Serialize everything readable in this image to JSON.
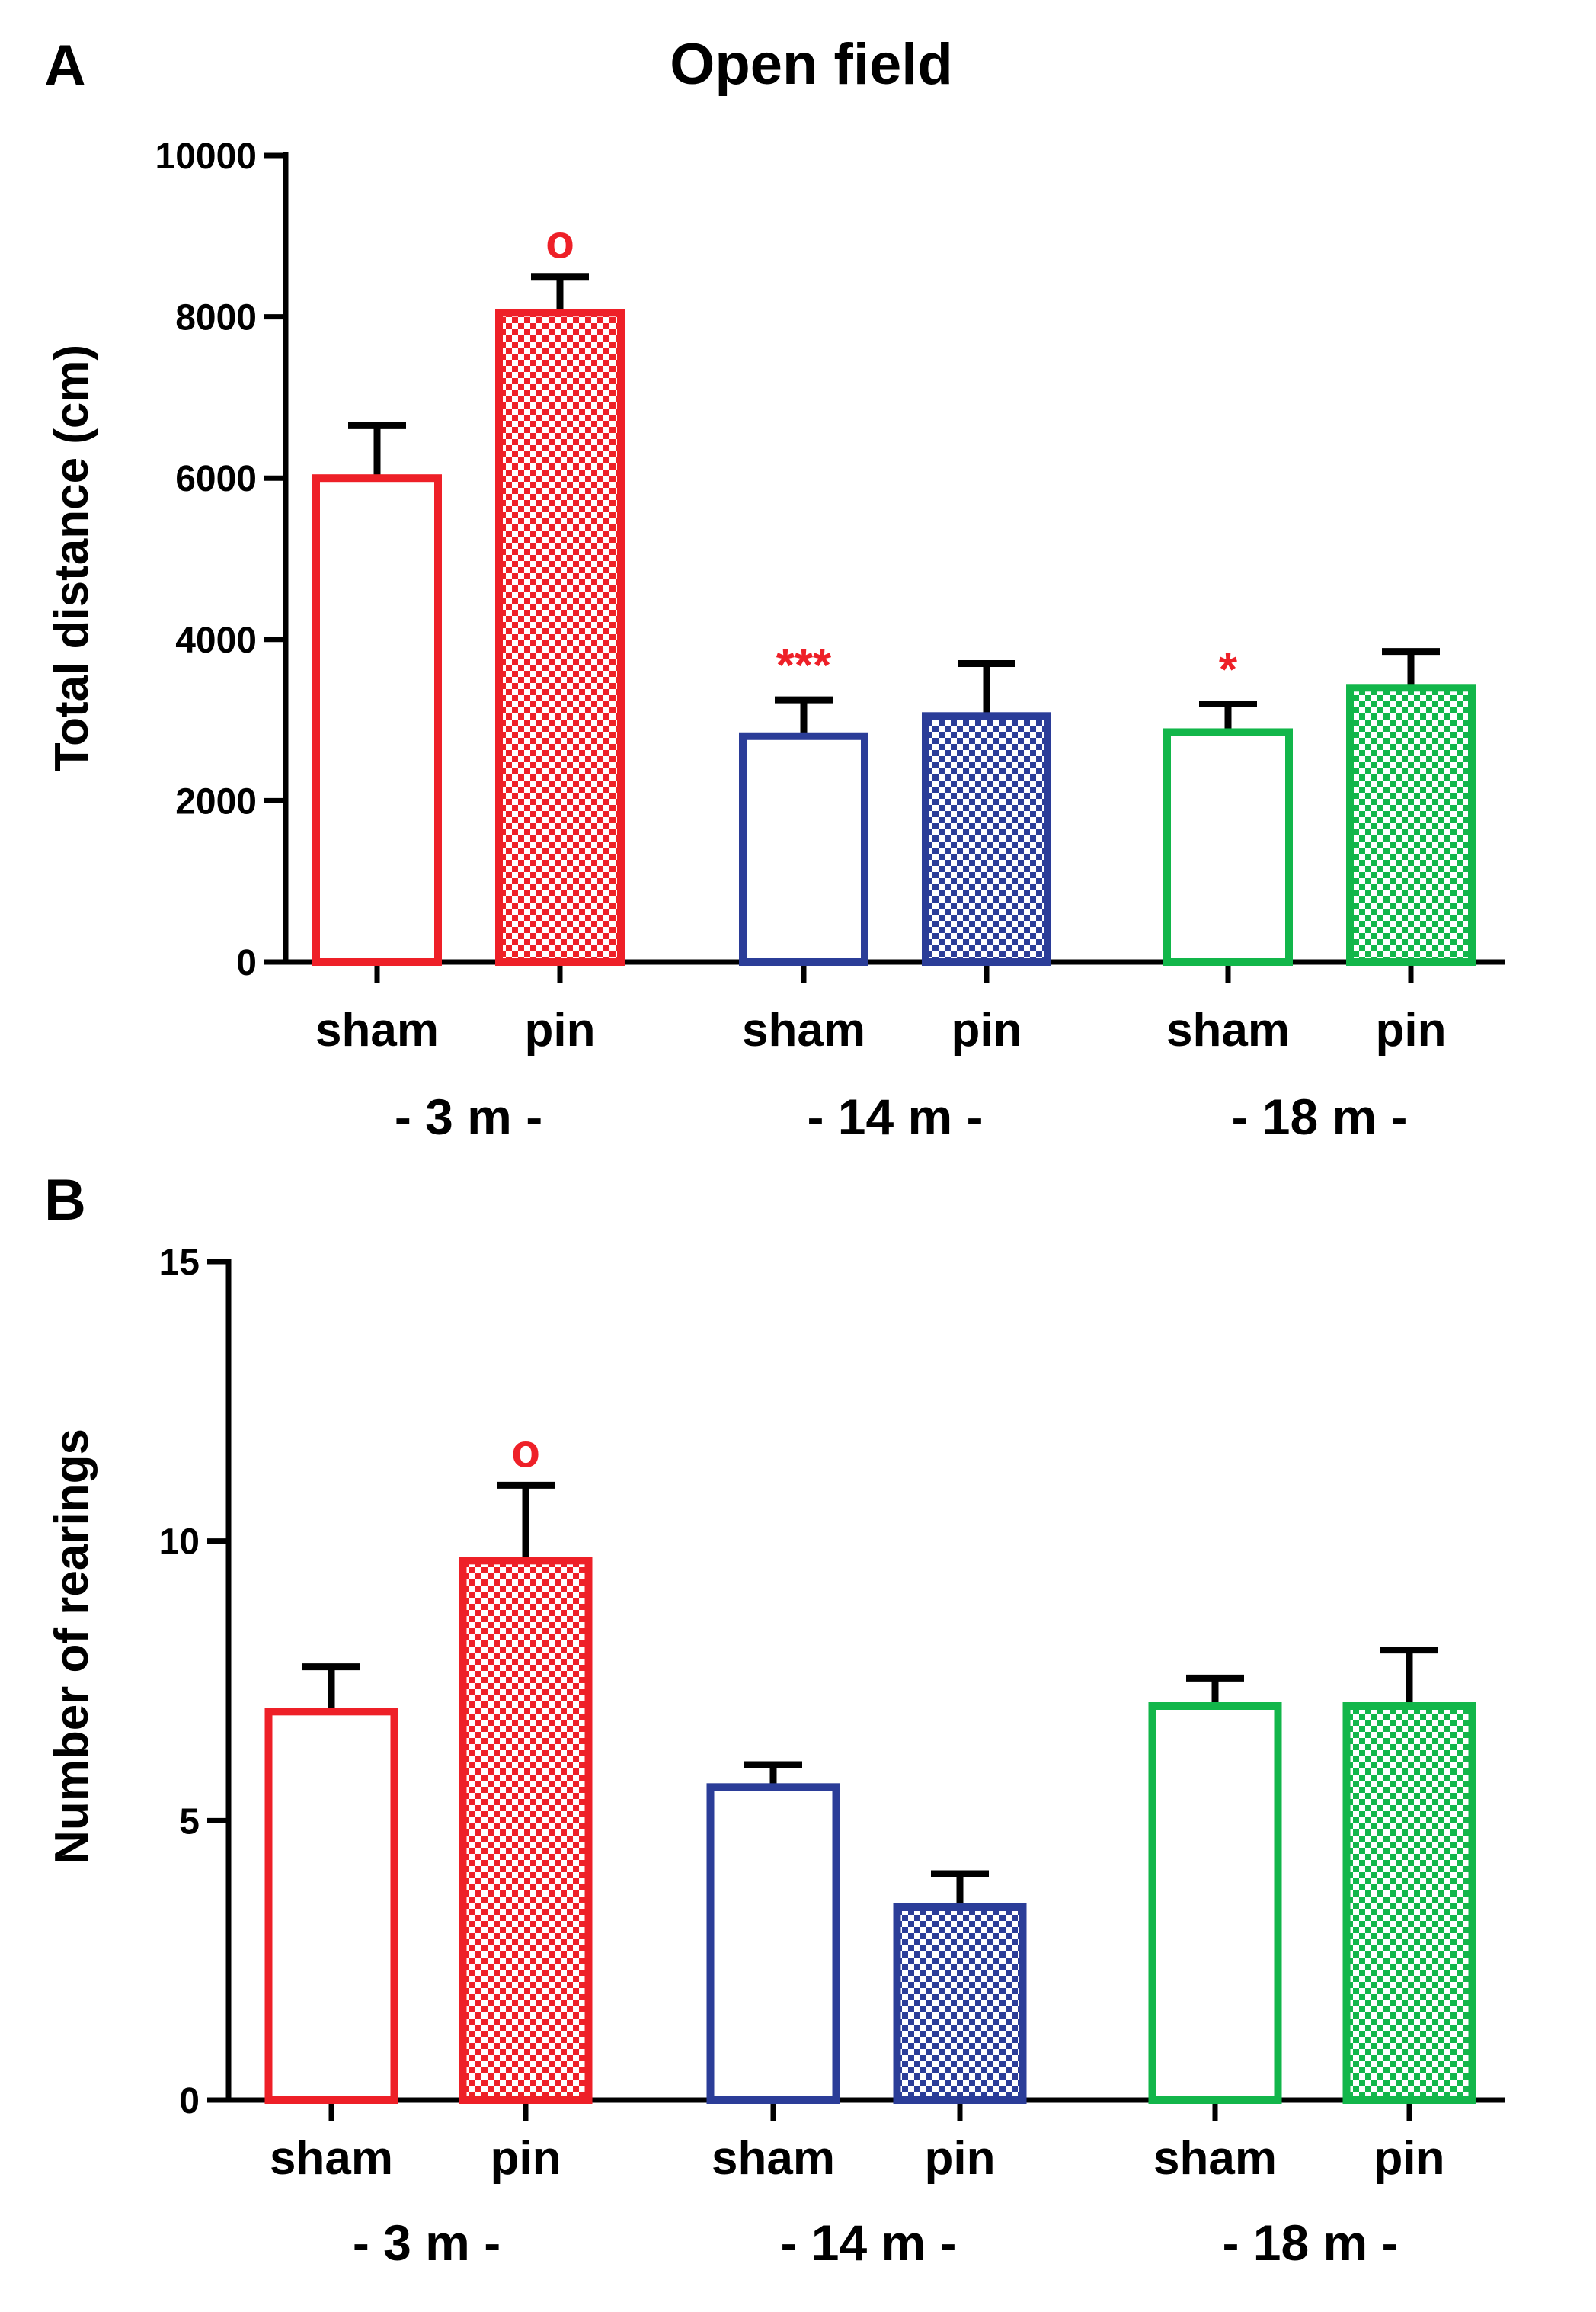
{
  "figure_title": "Open field",
  "colors": {
    "red": "#ee2028",
    "blue": "#2b3d98",
    "green": "#12b64a",
    "axis": "#000000",
    "annotation": "#ee2028"
  },
  "chart_data": [
    {
      "type": "bar",
      "panel_label": "A",
      "title": "Open field",
      "xlabel": "",
      "ylabel": "Total distance (cm)",
      "ylim": [
        0,
        10000
      ],
      "yticks": [
        0,
        2000,
        4000,
        6000,
        8000,
        10000
      ],
      "grid": false,
      "categories": [
        "sham",
        "pin",
        "sham",
        "pin",
        "sham",
        "pin"
      ],
      "groups": [
        "- 3 m -",
        "- 14 m -",
        "- 18 m -"
      ],
      "bars": [
        {
          "category": "sham",
          "group": "- 3 m -",
          "value": 6000,
          "error": 650,
          "color": "red",
          "fill": "open",
          "annotation": ""
        },
        {
          "category": "pin",
          "group": "- 3 m -",
          "value": 8050,
          "error": 450,
          "color": "red",
          "fill": "checker",
          "annotation": "o"
        },
        {
          "category": "sham",
          "group": "- 14 m -",
          "value": 2800,
          "error": 450,
          "color": "blue",
          "fill": "open",
          "annotation": "***"
        },
        {
          "category": "pin",
          "group": "- 14 m -",
          "value": 3050,
          "error": 650,
          "color": "blue",
          "fill": "checker",
          "annotation": ""
        },
        {
          "category": "sham",
          "group": "- 18 m -",
          "value": 2850,
          "error": 350,
          "color": "green",
          "fill": "open",
          "annotation": "*"
        },
        {
          "category": "pin",
          "group": "- 18 m -",
          "value": 3400,
          "error": 450,
          "color": "green",
          "fill": "checker",
          "annotation": ""
        }
      ]
    },
    {
      "type": "bar",
      "panel_label": "B",
      "title": "",
      "xlabel": "",
      "ylabel": "Number of rearings",
      "ylim": [
        0,
        15
      ],
      "yticks": [
        0,
        5,
        10,
        15
      ],
      "grid": false,
      "categories": [
        "sham",
        "pin",
        "sham",
        "pin",
        "sham",
        "pin"
      ],
      "groups": [
        "- 3 m -",
        "- 14 m -",
        "- 18 m -"
      ],
      "bars": [
        {
          "category": "sham",
          "group": "- 3 m -",
          "value": 6.95,
          "error": 0.8,
          "color": "red",
          "fill": "open",
          "annotation": ""
        },
        {
          "category": "pin",
          "group": "- 3 m -",
          "value": 9.65,
          "error": 1.35,
          "color": "red",
          "fill": "checker",
          "annotation": "o"
        },
        {
          "category": "sham",
          "group": "- 14 m -",
          "value": 5.6,
          "error": 0.4,
          "color": "blue",
          "fill": "open",
          "annotation": ""
        },
        {
          "category": "pin",
          "group": "- 14 m -",
          "value": 3.45,
          "error": 0.6,
          "color": "blue",
          "fill": "checker",
          "annotation": ""
        },
        {
          "category": "sham",
          "group": "- 18 m -",
          "value": 7.05,
          "error": 0.5,
          "color": "green",
          "fill": "open",
          "annotation": ""
        },
        {
          "category": "pin",
          "group": "- 18 m -",
          "value": 7.05,
          "error": 1.0,
          "color": "green",
          "fill": "checker",
          "annotation": ""
        }
      ]
    }
  ]
}
